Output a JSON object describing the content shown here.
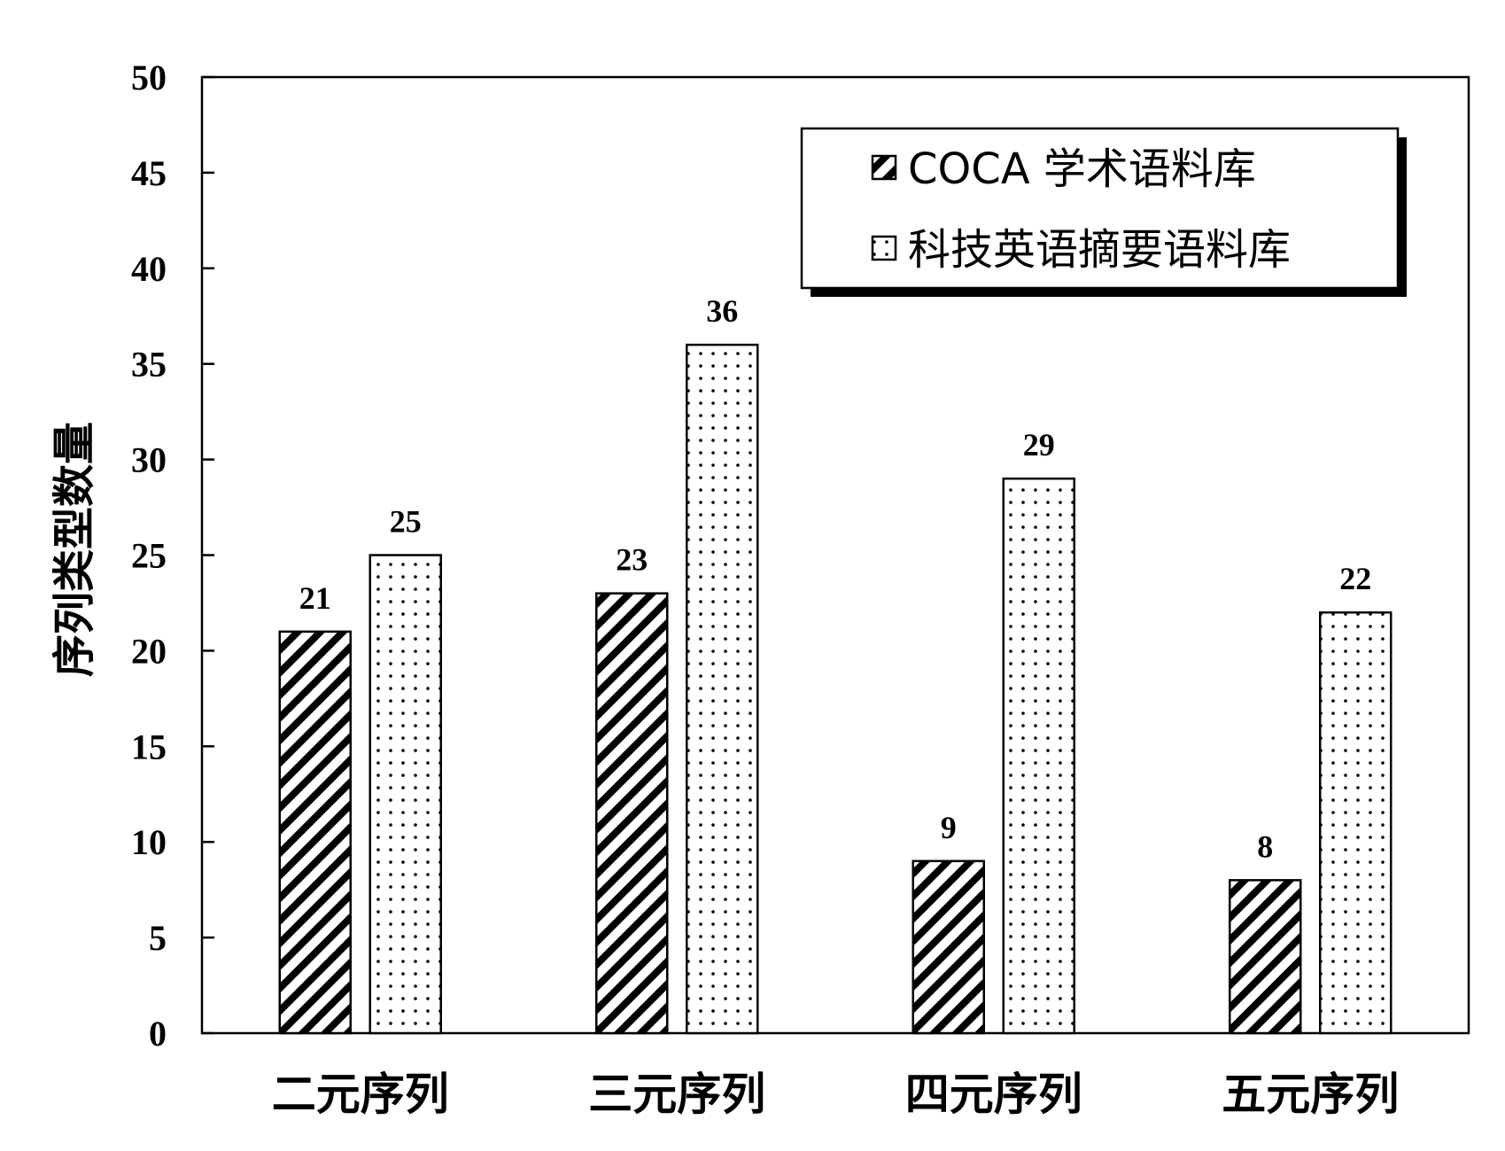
{
  "chart_data": {
    "type": "bar",
    "categories": [
      "二元序列",
      "三元序列",
      "四元序列",
      "五元序列"
    ],
    "series": [
      {
        "name": "COCA 学术语料库",
        "values": [
          21,
          23,
          9,
          8
        ],
        "pattern": "diagonal-stripes"
      },
      {
        "name": "科技英语摘要语料库",
        "values": [
          25,
          36,
          29,
          22
        ],
        "pattern": "dots"
      }
    ],
    "title": "",
    "xlabel": "",
    "ylabel": "序列类型数量",
    "ylim": [
      0,
      50
    ],
    "yticks": [
      0,
      5,
      10,
      15,
      20,
      25,
      30,
      35,
      40,
      45,
      50
    ],
    "grid": false,
    "legend_position": "top-right",
    "colors": {
      "stroke": "#000000",
      "fill": "#ffffff"
    }
  }
}
